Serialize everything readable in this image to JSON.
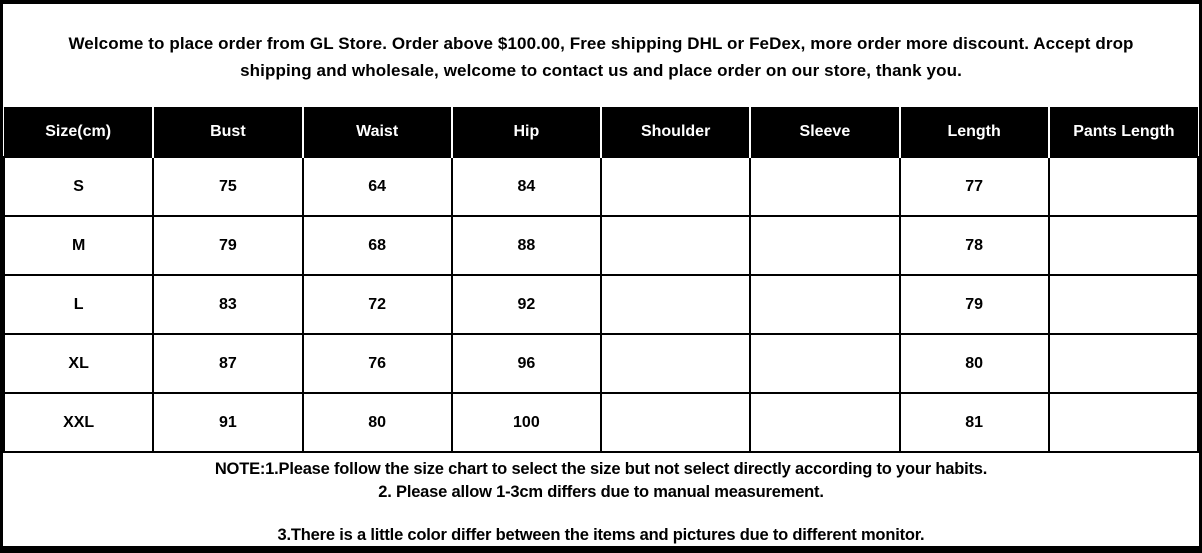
{
  "page": {
    "background_color": "#ffffff",
    "frame_color": "#000000"
  },
  "welcome": {
    "line1": "Welcome to place order from GL Store. Order above $100.00, Free shipping DHL or FeDex, more order more discount. Accept drop",
    "line2": "shipping and wholesale, welcome to contact us and place order on our store, thank you."
  },
  "size_chart": {
    "header_bg": "#000000",
    "header_text_color": "#ffffff",
    "columns": [
      "Size(cm)",
      "Bust",
      "Waist",
      "Hip",
      "Shoulder",
      "Sleeve",
      "Length",
      "Pants Length"
    ],
    "rows": [
      {
        "cells": [
          "S",
          "75",
          "64",
          "84",
          "",
          "",
          "77",
          ""
        ]
      },
      {
        "cells": [
          "M",
          "79",
          "68",
          "88",
          "",
          "",
          "78",
          ""
        ]
      },
      {
        "cells": [
          "L",
          "83",
          "72",
          "92",
          "",
          "",
          "79",
          ""
        ]
      },
      {
        "cells": [
          "XL",
          "87",
          "76",
          "96",
          "",
          "",
          "80",
          ""
        ]
      },
      {
        "cells": [
          "XXL",
          "91",
          "80",
          "100",
          "",
          "",
          "81",
          ""
        ]
      }
    ]
  },
  "notes": {
    "line1": "NOTE:1.Please follow the size chart to select the size but not select directly according to your habits.",
    "line2": "2. Please allow 1-3cm differs due to manual measurement.",
    "line3": "3.There is a little color differ between the items and pictures due to different monitor."
  }
}
